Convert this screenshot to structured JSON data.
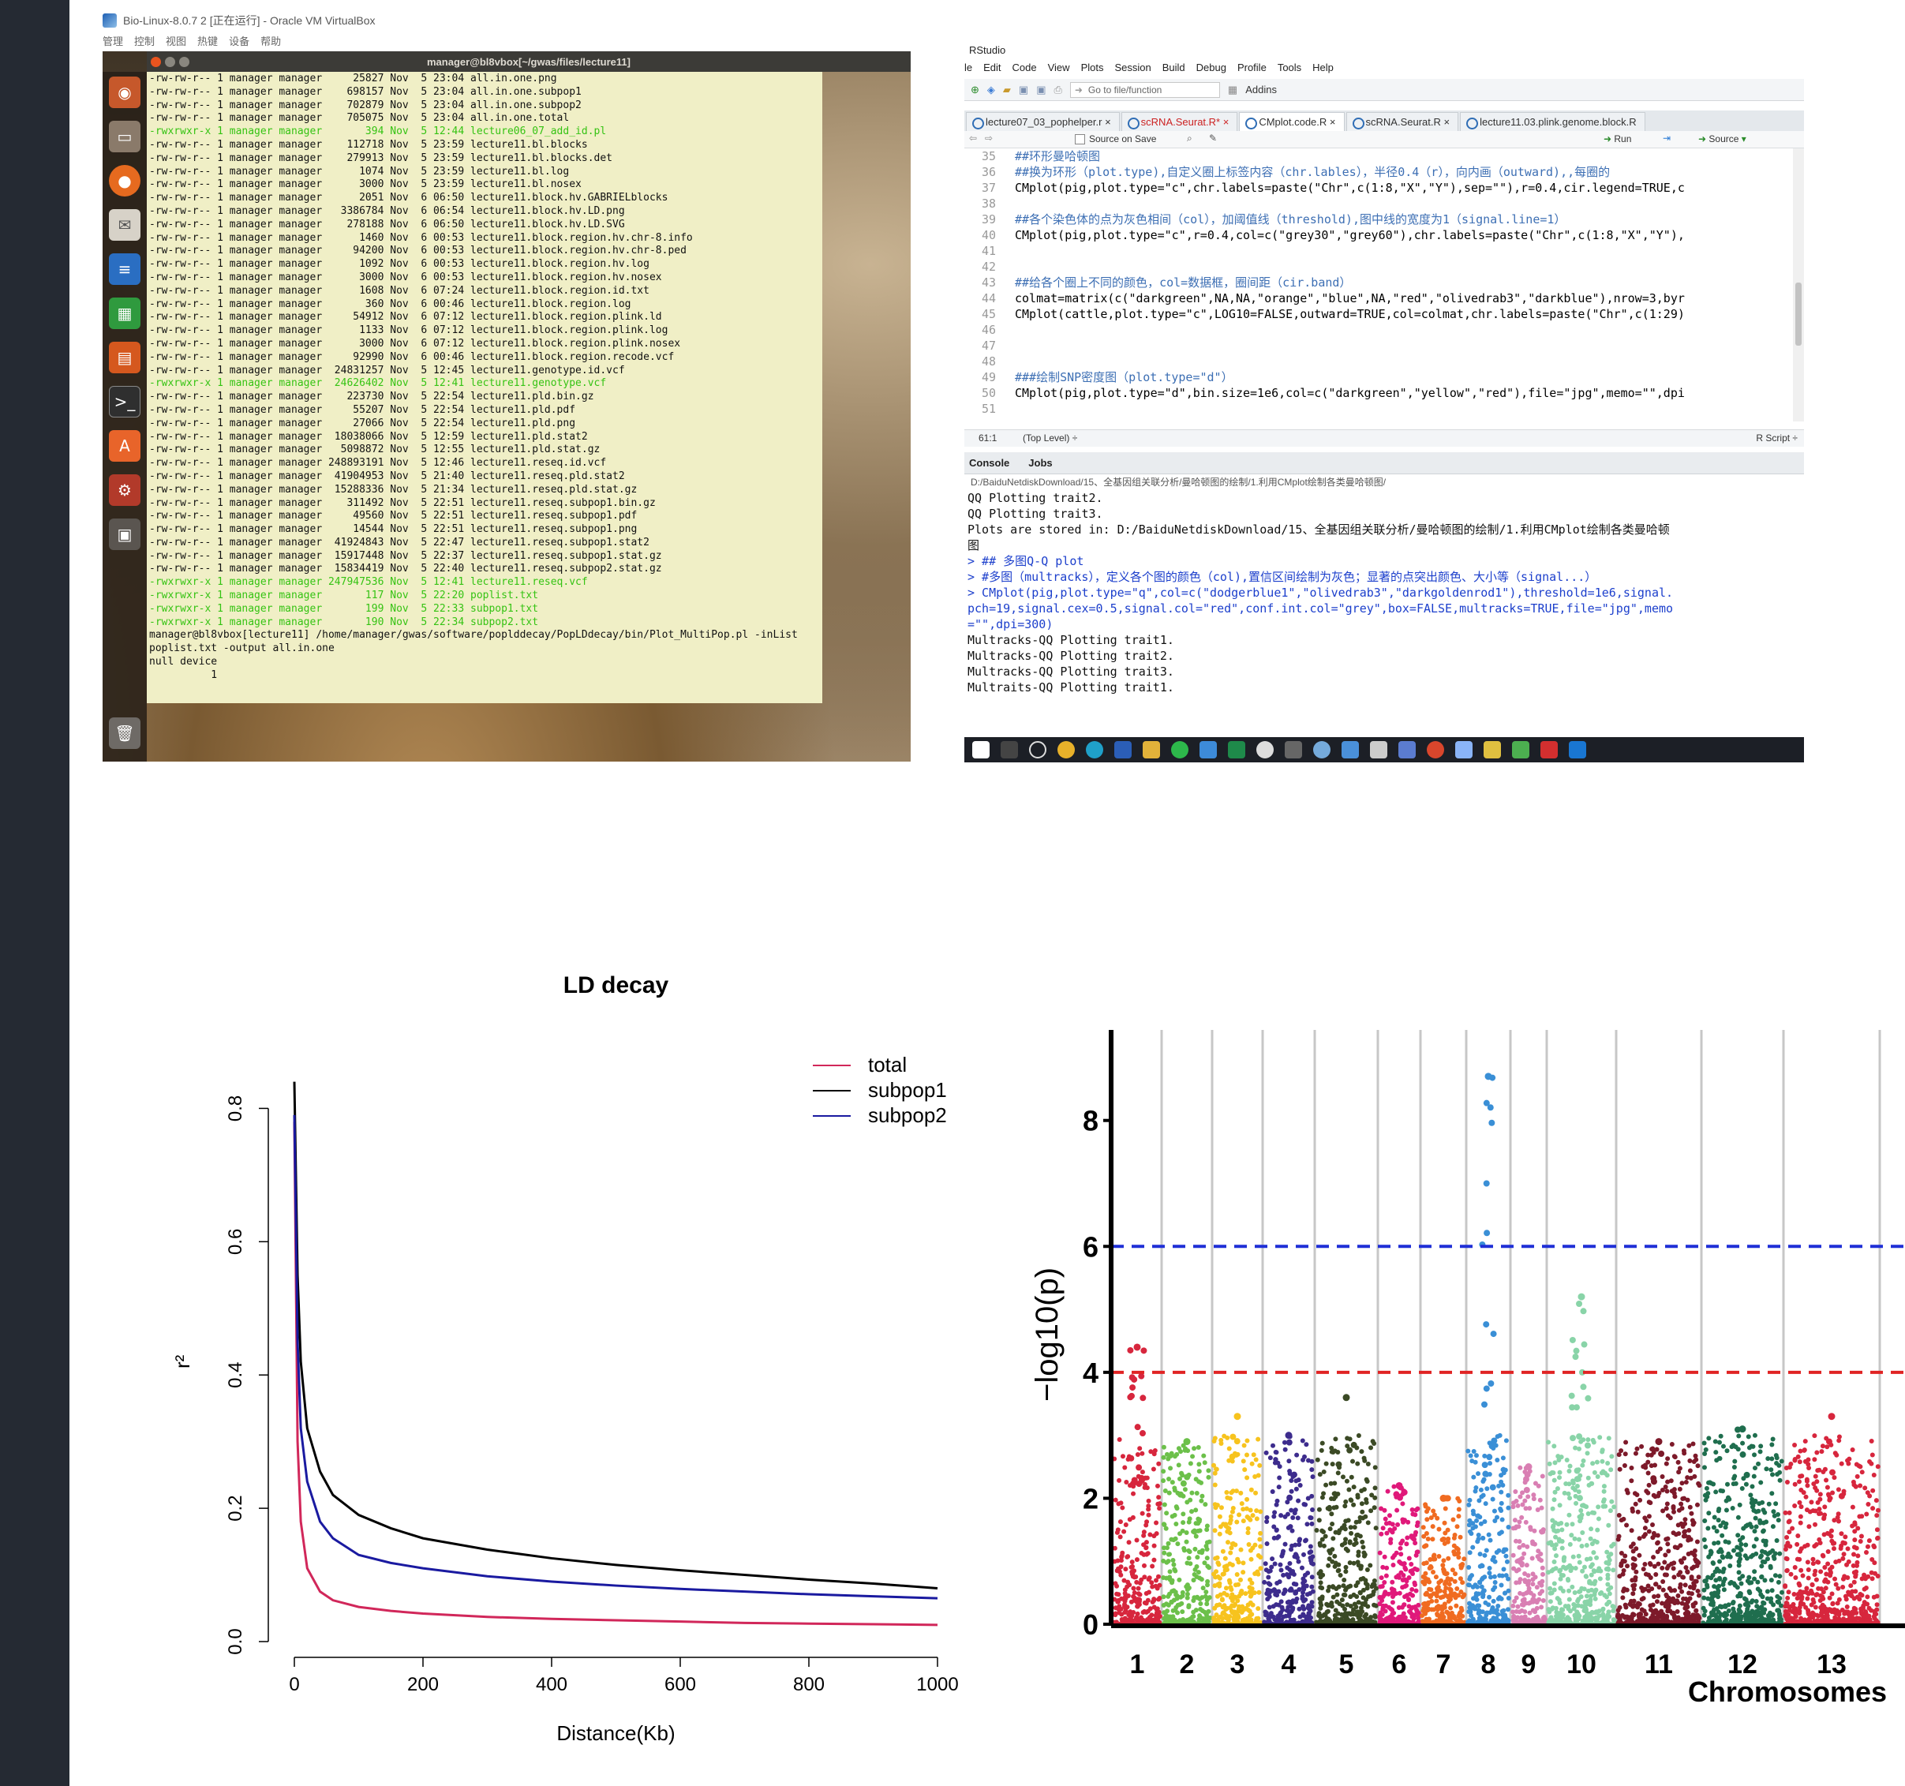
{
  "vbox": {
    "title": "Bio-Linux-8.0.7 2 [正在运行] - Oracle VM VirtualBox",
    "menu": [
      "管理",
      "控制",
      "视图",
      "热键",
      "设备",
      "帮助"
    ],
    "terminal_title": "manager@bl8vbox[~/gwas/files/lecture11]",
    "launcher_icons": [
      "ubuntu-icon",
      "files-icon",
      "firefox-icon",
      "mail-icon",
      "writer-icon",
      "calc-icon",
      "impress-icon",
      "terminal-icon",
      "software-center-icon",
      "settings-icon",
      "workspace-icon",
      "trash-icon"
    ],
    "terminal_lines": [
      {
        "text": "-rw-rw-r-- 1 manager manager     25827 Nov  5 23:04 all.in.one.png",
        "green": false
      },
      {
        "text": "-rw-rw-r-- 1 manager manager    698157 Nov  5 23:04 all.in.one.subpop1",
        "green": false
      },
      {
        "text": "-rw-rw-r-- 1 manager manager    702879 Nov  5 23:04 all.in.one.subpop2",
        "green": false
      },
      {
        "text": "-rw-rw-r-- 1 manager manager    705075 Nov  5 23:04 all.in.one.total",
        "green": false
      },
      {
        "text": "-rwxrwxr-x 1 manager manager       394 Nov  5 12:44 lecture06_07_add_id.pl",
        "green": true
      },
      {
        "text": "-rw-rw-r-- 1 manager manager    112718 Nov  5 23:59 lecture11.bl.blocks",
        "green": false
      },
      {
        "text": "-rw-rw-r-- 1 manager manager    279913 Nov  5 23:59 lecture11.bl.blocks.det",
        "green": false
      },
      {
        "text": "-rw-rw-r-- 1 manager manager      1074 Nov  5 23:59 lecture11.bl.log",
        "green": false
      },
      {
        "text": "-rw-rw-r-- 1 manager manager      3000 Nov  5 23:59 lecture11.bl.nosex",
        "green": false
      },
      {
        "text": "-rw-rw-r-- 1 manager manager      2051 Nov  6 06:50 lecture11.block.hv.GABRIELblocks",
        "green": false
      },
      {
        "text": "-rw-rw-r-- 1 manager manager   3386784 Nov  6 06:54 lecture11.block.hv.LD.png",
        "green": false
      },
      {
        "text": "-rw-rw-r-- 1 manager manager    278188 Nov  6 06:50 lecture11.block.hv.LD.SVG",
        "green": false
      },
      {
        "text": "-rw-rw-r-- 1 manager manager      1460 Nov  6 00:53 lecture11.block.region.hv.chr-8.info",
        "green": false
      },
      {
        "text": "-rw-rw-r-- 1 manager manager     94200 Nov  6 00:53 lecture11.block.region.hv.chr-8.ped",
        "green": false
      },
      {
        "text": "-rw-rw-r-- 1 manager manager      1092 Nov  6 00:53 lecture11.block.region.hv.log",
        "green": false
      },
      {
        "text": "-rw-rw-r-- 1 manager manager      3000 Nov  6 00:53 lecture11.block.region.hv.nosex",
        "green": false
      },
      {
        "text": "-rw-rw-r-- 1 manager manager      1608 Nov  6 07:24 lecture11.block.region.id.txt",
        "green": false
      },
      {
        "text": "-rw-rw-r-- 1 manager manager       360 Nov  6 00:46 lecture11.block.region.log",
        "green": false
      },
      {
        "text": "-rw-rw-r-- 1 manager manager     54912 Nov  6 07:12 lecture11.block.region.plink.ld",
        "green": false
      },
      {
        "text": "-rw-rw-r-- 1 manager manager      1133 Nov  6 07:12 lecture11.block.region.plink.log",
        "green": false
      },
      {
        "text": "-rw-rw-r-- 1 manager manager      3000 Nov  6 07:12 lecture11.block.region.plink.nosex",
        "green": false
      },
      {
        "text": "-rw-rw-r-- 1 manager manager     92990 Nov  6 00:46 lecture11.block.region.recode.vcf",
        "green": false
      },
      {
        "text": "-rw-rw-r-- 1 manager manager  24831257 Nov  5 12:45 lecture11.genotype.id.vcf",
        "green": false
      },
      {
        "text": "-rwxrwxr-x 1 manager manager  24626402 Nov  5 12:41 lecture11.genotype.vcf",
        "green": true
      },
      {
        "text": "-rw-rw-r-- 1 manager manager    223730 Nov  5 22:54 lecture11.pld.bin.gz",
        "green": false
      },
      {
        "text": "-rw-rw-r-- 1 manager manager     55207 Nov  5 22:54 lecture11.pld.pdf",
        "green": false
      },
      {
        "text": "-rw-rw-r-- 1 manager manager     27066 Nov  5 22:54 lecture11.pld.png",
        "green": false
      },
      {
        "text": "-rw-rw-r-- 1 manager manager  18038066 Nov  5 12:59 lecture11.pld.stat2",
        "green": false
      },
      {
        "text": "-rw-rw-r-- 1 manager manager   5098872 Nov  5 12:55 lecture11.pld.stat.gz",
        "green": false
      },
      {
        "text": "-rw-rw-r-- 1 manager manager 248893191 Nov  5 12:46 lecture11.reseq.id.vcf",
        "green": false
      },
      {
        "text": "-rw-rw-r-- 1 manager manager  41904953 Nov  5 21:40 lecture11.reseq.pld.stat2",
        "green": false
      },
      {
        "text": "-rw-rw-r-- 1 manager manager  15288336 Nov  5 21:34 lecture11.reseq.pld.stat.gz",
        "green": false
      },
      {
        "text": "-rw-rw-r-- 1 manager manager    311492 Nov  5 22:51 lecture11.reseq.subpop1.bin.gz",
        "green": false
      },
      {
        "text": "-rw-rw-r-- 1 manager manager     49560 Nov  5 22:51 lecture11.reseq.subpop1.pdf",
        "green": false
      },
      {
        "text": "-rw-rw-r-- 1 manager manager     14544 Nov  5 22:51 lecture11.reseq.subpop1.png",
        "green": false
      },
      {
        "text": "-rw-rw-r-- 1 manager manager  41924843 Nov  5 22:47 lecture11.reseq.subpop1.stat2",
        "green": false
      },
      {
        "text": "-rw-rw-r-- 1 manager manager  15917448 Nov  5 22:37 lecture11.reseq.subpop1.stat.gz",
        "green": false
      },
      {
        "text": "-rw-rw-r-- 1 manager manager  15834419 Nov  5 22:40 lecture11.reseq.subpop2.stat.gz",
        "green": false
      },
      {
        "text": "-rwxrwxr-x 1 manager manager 247947536 Nov  5 12:41 lecture11.reseq.vcf",
        "green": true
      },
      {
        "text": "-rwxrwxr-x 1 manager manager       117 Nov  5 22:20 poplist.txt",
        "green": true
      },
      {
        "text": "-rwxrwxr-x 1 manager manager       199 Nov  5 22:33 subpop1.txt",
        "green": true
      },
      {
        "text": "-rwxrwxr-x 1 manager manager       190 Nov  5 22:34 subpop2.txt",
        "green": true
      },
      {
        "text": "manager@bl8vbox[lecture11] /home/manager/gwas/software/poplddecay/PopLDdecay/bin/Plot_MultiPop.pl -inList",
        "green": false
      },
      {
        "text": "poplist.txt -output all.in.one",
        "green": false
      },
      {
        "text": "null device",
        "green": false
      },
      {
        "text": "          1",
        "green": false
      }
    ]
  },
  "rstudio": {
    "title": "RStudio",
    "menu": [
      "le",
      "Edit",
      "Code",
      "View",
      "Plots",
      "Session",
      "Build",
      "Debug",
      "Profile",
      "Tools",
      "Help"
    ],
    "goto_placeholder": "Go to file/function",
    "addins": "Addins",
    "tabs": [
      {
        "label": "lecture07_03_pophelper.r",
        "active": false,
        "red": false
      },
      {
        "label": "scRNA.Seurat.R*",
        "active": false,
        "red": true
      },
      {
        "label": "CMplot.code.R",
        "active": true,
        "red": false
      },
      {
        "label": "scRNA.Seurat.R",
        "active": false,
        "red": false
      },
      {
        "label": "lecture11.03.plink.genome.block.R",
        "active": false,
        "red": false
      }
    ],
    "source_on_save": "Source on Save",
    "run": "Run",
    "source": "Source",
    "code_lines": [
      {
        "n": "35",
        "text": "##环形曼哈顿图",
        "comment": true
      },
      {
        "n": "36",
        "text": "##换为环形（plot.type),自定义圈上标签内容（chr.lables），半径0.4（r），向内画（outward),,每圈的",
        "comment": true
      },
      {
        "n": "37",
        "text": "CMplot(pig,plot.type=\"c\",chr.labels=paste(\"Chr\",c(1:8,\"X\",\"Y\"),sep=\"\"),r=0.4,cir.legend=TRUE,c",
        "comment": false
      },
      {
        "n": "38",
        "text": "",
        "comment": false
      },
      {
        "n": "39",
        "text": "##各个染色体的点为灰色相间（col），加阈值线（threshold),图中线的宽度为1（signal.line=1）",
        "comment": true
      },
      {
        "n": "40",
        "text": "CMplot(pig,plot.type=\"c\",r=0.4,col=c(\"grey30\",\"grey60\"),chr.labels=paste(\"Chr\",c(1:8,\"X\",\"Y\"),",
        "comment": false
      },
      {
        "n": "41",
        "text": "",
        "comment": false
      },
      {
        "n": "42",
        "text": "",
        "comment": false
      },
      {
        "n": "43",
        "text": "##给各个圈上不同的颜色，col=数据框，圈间距（cir.band）",
        "comment": true
      },
      {
        "n": "44",
        "text": "colmat=matrix(c(\"darkgreen\",NA,NA,\"orange\",\"blue\",NA,\"red\",\"olivedrab3\",\"darkblue\"),nrow=3,byr",
        "comment": false
      },
      {
        "n": "45",
        "text": "CMplot(cattle,plot.type=\"c\",LOG10=FALSE,outward=TRUE,col=colmat,chr.labels=paste(\"Chr\",c(1:29)",
        "comment": false
      },
      {
        "n": "46",
        "text": "",
        "comment": false
      },
      {
        "n": "47",
        "text": "",
        "comment": false
      },
      {
        "n": "48",
        "text": "",
        "comment": false
      },
      {
        "n": "49",
        "text": "###绘制SNP密度图（plot.type=\"d\"）",
        "comment": true
      },
      {
        "n": "50",
        "text": "CMplot(pig,plot.type=\"d\",bin.size=1e6,col=c(\"darkgreen\",\"yellow\",\"red\"),file=\"jpg\",memo=\"\",dpi",
        "comment": false
      },
      {
        "n": "51",
        "text": "",
        "comment": false
      }
    ],
    "status_pos": "61:1",
    "status_scope": "(Top Level) ÷",
    "status_lang": "R Script ÷",
    "console_tab": "Console",
    "jobs_tab": "Jobs",
    "console_path": "D:/BaiduNetdiskDownload/15、全基因组关联分析/曼哈顿图的绘制/1.利用CMplot绘制各类曼哈顿图/",
    "console_lines": [
      {
        "text": "QQ Plotting trait2.",
        "cmd": false
      },
      {
        "text": "QQ Plotting trait3.",
        "cmd": false
      },
      {
        "text": "Plots are stored in: D:/BaiduNetdiskDownload/15、全基因组关联分析/曼哈顿图的绘制/1.利用CMplot绘制各类曼哈顿",
        "cmd": false
      },
      {
        "text": "图",
        "cmd": false
      },
      {
        "text": "> ## 多图Q-Q plot",
        "cmd": true
      },
      {
        "text": "> #多图（multracks），定义各个图的颜色（col),置信区间绘制为灰色；显著的点突出颜色、大小等（signal...）",
        "cmd": true
      },
      {
        "text": "> CMplot(pig,plot.type=\"q\",col=c(\"dodgerblue1\",\"olivedrab3\",\"darkgoldenrod1\"),threshold=1e6,signal.",
        "cmd": true
      },
      {
        "text": "pch=19,signal.cex=0.5,signal.col=\"red\",conf.int.col=\"grey\",box=FALSE,multracks=TRUE,file=\"jpg\",memo",
        "cmd": true
      },
      {
        "text": "=\"\",dpi=300)",
        "cmd": true
      },
      {
        "text": "Multracks-QQ Plotting trait1.",
        "cmd": false
      },
      {
        "text": "Multracks-QQ Plotting trait2.",
        "cmd": false
      },
      {
        "text": "Multracks-QQ Plotting trait3.",
        "cmd": false
      },
      {
        "text": "Multraits-QQ Plotting trait1.",
        "cmd": false
      }
    ]
  },
  "chart_data": [
    {
      "type": "line",
      "title": "LD decay",
      "xlabel": "Distance(Kb)",
      "ylabel": "r²",
      "xlim": [
        0,
        1000
      ],
      "ylim": [
        0,
        0.85
      ],
      "xticks": [
        0,
        200,
        400,
        600,
        800,
        1000
      ],
      "yticks": [
        0.0,
        0.2,
        0.4,
        0.6,
        0.8
      ],
      "legend_position": "top-right",
      "x": [
        0,
        5,
        10,
        20,
        40,
        60,
        100,
        150,
        200,
        300,
        400,
        500,
        600,
        700,
        800,
        900,
        1000
      ],
      "series": [
        {
          "name": "total",
          "color": "#d1275a",
          "values": [
            0.78,
            0.3,
            0.18,
            0.11,
            0.075,
            0.062,
            0.052,
            0.046,
            0.042,
            0.037,
            0.034,
            0.032,
            0.03,
            0.028,
            0.027,
            0.026,
            0.025
          ]
        },
        {
          "name": "subpop1",
          "color": "#000000",
          "values": [
            0.84,
            0.55,
            0.42,
            0.32,
            0.255,
            0.22,
            0.19,
            0.17,
            0.155,
            0.138,
            0.125,
            0.115,
            0.107,
            0.1,
            0.093,
            0.087,
            0.08
          ]
        },
        {
          "name": "subpop2",
          "color": "#1a1aa0",
          "values": [
            0.79,
            0.45,
            0.32,
            0.24,
            0.18,
            0.155,
            0.13,
            0.118,
            0.11,
            0.098,
            0.09,
            0.084,
            0.079,
            0.075,
            0.071,
            0.068,
            0.065
          ]
        }
      ]
    },
    {
      "type": "scatter",
      "title": "",
      "xlabel": "Chromosomes",
      "ylabel": "−log10(p)",
      "ylim": [
        0,
        9
      ],
      "yticks": [
        0,
        2,
        4,
        6,
        8
      ],
      "thresholds": [
        {
          "value": 6,
          "color": "#1f2fd6"
        },
        {
          "value": 4,
          "color": "#e02424"
        }
      ],
      "chromosomes": [
        {
          "label": "1",
          "color": "#d7263d",
          "max": 4.4
        },
        {
          "label": "2",
          "color": "#6cc04a",
          "max": 2.9
        },
        {
          "label": "3",
          "color": "#f7c31e",
          "max": 3.3
        },
        {
          "label": "4",
          "color": "#3d2c8d",
          "max": 3.0
        },
        {
          "label": "5",
          "color": "#3b4a25",
          "max": 3.6
        },
        {
          "label": "6",
          "color": "#e0197a",
          "max": 2.2
        },
        {
          "label": "7",
          "color": "#f06b21",
          "max": 2.0
        },
        {
          "label": "8",
          "color": "#3a8fd6",
          "max": 8.7
        },
        {
          "label": "9",
          "color": "#d97fb3",
          "max": 2.5
        },
        {
          "label": "10",
          "color": "#89d4a8",
          "max": 5.2
        },
        {
          "label": "11",
          "color": "#7d1a2a",
          "max": 2.9
        },
        {
          "label": "12",
          "color": "#1f6e4e",
          "max": 3.1
        },
        {
          "label": "13",
          "color": "#d7263d",
          "max": 3.3
        }
      ]
    }
  ]
}
